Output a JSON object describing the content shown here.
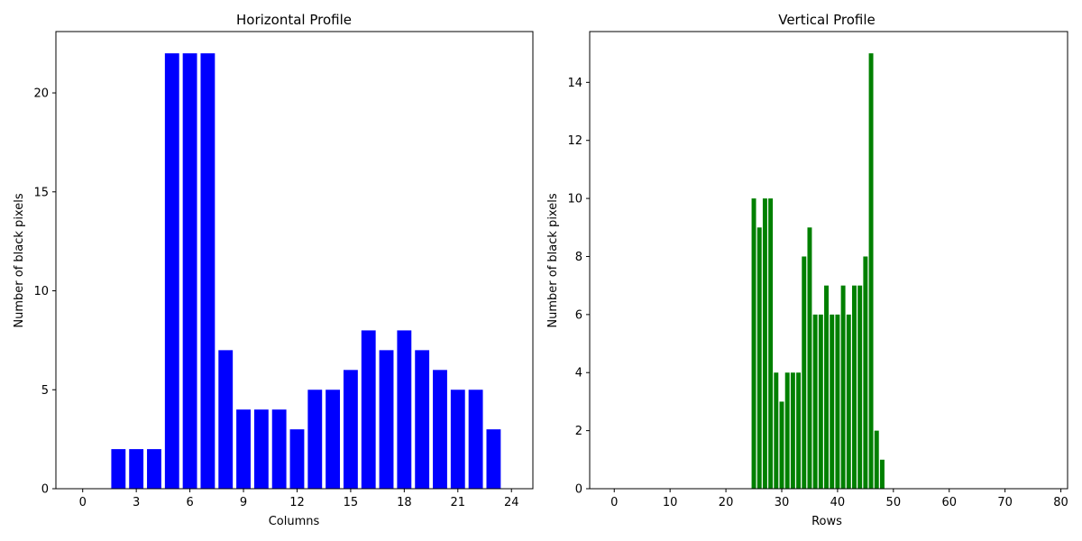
{
  "chart_data": [
    {
      "type": "bar",
      "title": "Horizontal Profile",
      "xlabel": "Columns",
      "ylabel": "Number of black pixels",
      "color": "#0000ff",
      "xlim": [
        -1.5,
        25.2
      ],
      "ylim": [
        0,
        23.1
      ],
      "xticks": [
        0,
        3,
        6,
        9,
        12,
        15,
        18,
        21,
        24
      ],
      "yticks": [
        0,
        5,
        10,
        15,
        20
      ],
      "x": [
        0,
        1,
        2,
        3,
        4,
        5,
        6,
        7,
        8,
        9,
        10,
        11,
        12,
        13,
        14,
        15,
        16,
        17,
        18,
        19,
        20,
        21,
        22,
        23,
        24
      ],
      "values": [
        0,
        0,
        2,
        2,
        2,
        22,
        22,
        22,
        7,
        4,
        4,
        4,
        3,
        5,
        5,
        6,
        8,
        7,
        8,
        7,
        6,
        5,
        5,
        3,
        0
      ]
    },
    {
      "type": "bar",
      "title": "Vertical Profile",
      "xlabel": "Rows",
      "ylabel": "Number of black pixels",
      "color": "#008000",
      "xlim": [
        -4.4,
        81.2
      ],
      "ylim": [
        0,
        15.75
      ],
      "xticks": [
        0,
        10,
        20,
        30,
        40,
        50,
        60,
        70,
        80
      ],
      "yticks": [
        0,
        2,
        4,
        6,
        8,
        10,
        12,
        14
      ],
      "x": [
        25,
        26,
        27,
        28,
        29,
        30,
        31,
        32,
        33,
        34,
        35,
        36,
        37,
        38,
        39,
        40,
        41,
        42,
        43,
        44,
        45,
        46,
        47,
        48
      ],
      "values": [
        10,
        9,
        10,
        10,
        4,
        3,
        4,
        4,
        4,
        8,
        9,
        6,
        6,
        7,
        6,
        6,
        7,
        6,
        7,
        7,
        8,
        15,
        2,
        1
      ]
    }
  ]
}
